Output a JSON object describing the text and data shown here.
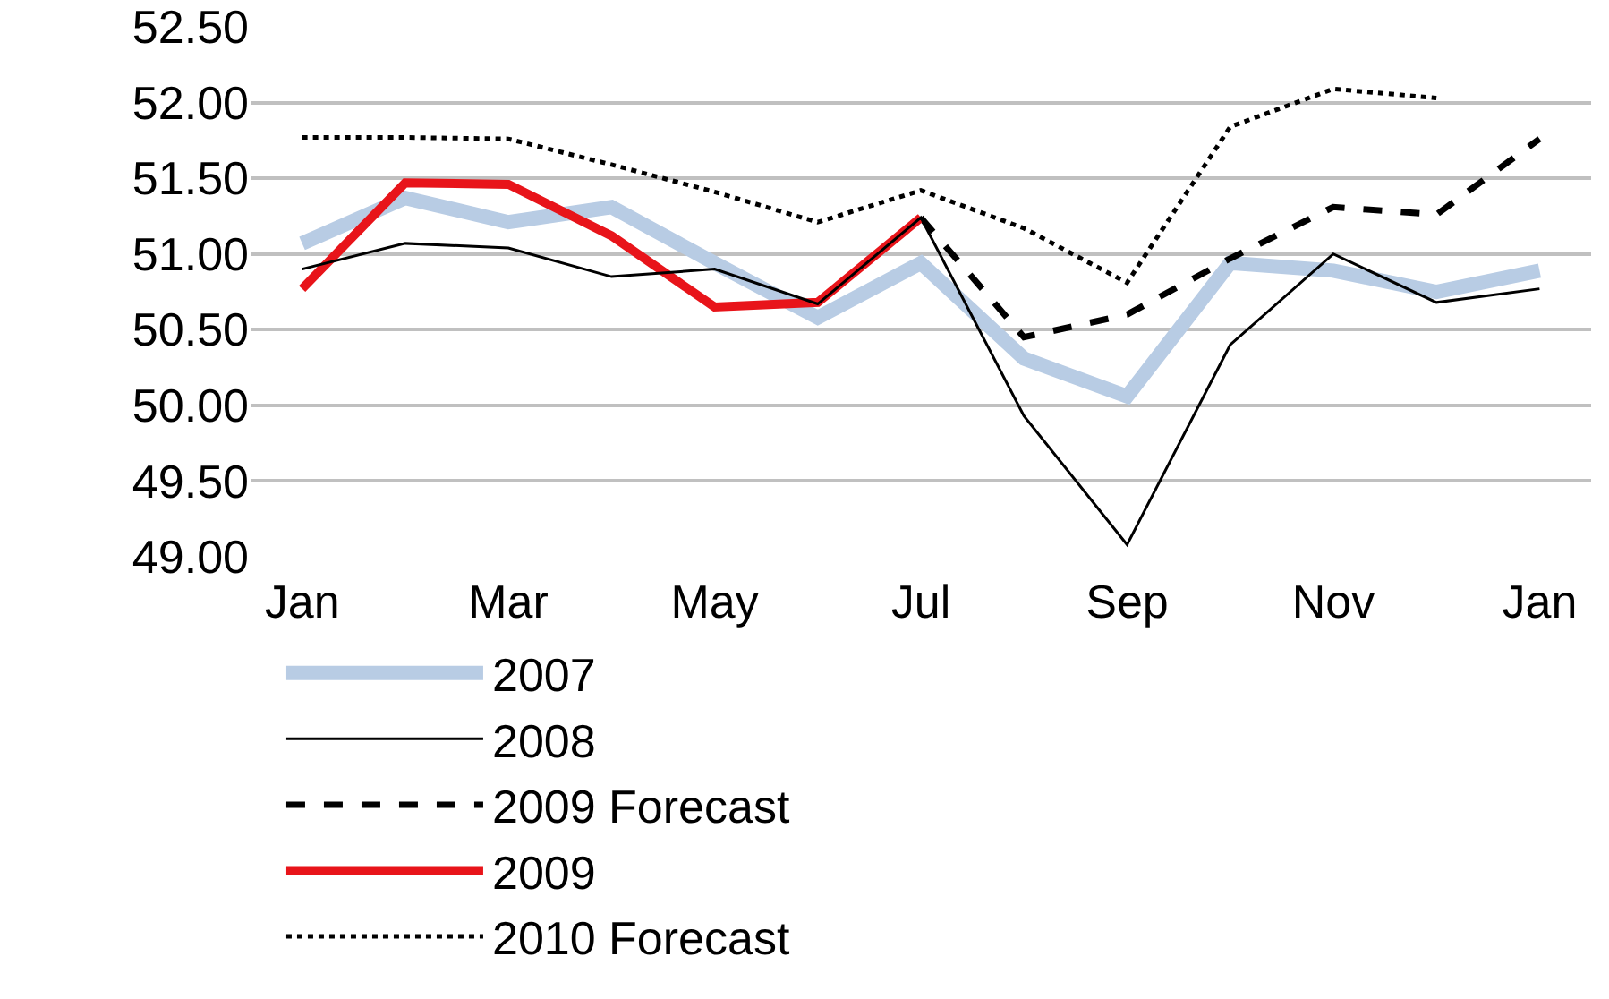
{
  "chart_data": {
    "type": "line",
    "categories": [
      "Jan",
      null,
      "Mar",
      null,
      "May",
      null,
      "Jul",
      null,
      "Sep",
      null,
      "Nov",
      null,
      "Jan"
    ],
    "ylim": [
      49,
      52.5
    ],
    "yticks": [
      {
        "value": 49,
        "label": "49.00"
      },
      {
        "value": 49.5,
        "label": "49.50"
      },
      {
        "value": 50,
        "label": "50.00"
      },
      {
        "value": 50.5,
        "label": "50.50"
      },
      {
        "value": 51,
        "label": "51.00"
      },
      {
        "value": 51.5,
        "label": "51.50"
      },
      {
        "value": 52,
        "label": "52.00"
      },
      {
        "value": 52.5,
        "label": "52.50"
      }
    ],
    "grid": "y",
    "legend": "bottom",
    "marker": "none",
    "series": [
      {
        "name": "2007",
        "color": "#b8cce4",
        "line_style": "solid",
        "values": [
          51.07,
          51.37,
          51.21,
          51.31,
          50.94,
          50.58,
          50.94,
          50.31,
          50.06,
          50.94,
          50.89,
          50.75,
          50.89
        ]
      },
      {
        "name": "2008",
        "color": "#000000",
        "line_style": "solid",
        "values": [
          50.9,
          51.07,
          51.04,
          50.85,
          50.9,
          50.67,
          51.24,
          49.93,
          49.08,
          50.4,
          51.0,
          50.68,
          50.77
        ]
      },
      {
        "name": "2009 Forecast",
        "color": "#000000",
        "line_style": "dashed",
        "values": [
          null,
          null,
          null,
          null,
          null,
          null,
          51.24,
          50.45,
          50.6,
          50.97,
          51.31,
          51.26,
          51.76
        ]
      },
      {
        "name": "2009",
        "color": "#e8141a",
        "line_style": "solid",
        "values": [
          50.77,
          51.47,
          51.46,
          51.12,
          50.65,
          50.68,
          51.24,
          null,
          null,
          null,
          null,
          null,
          null
        ]
      },
      {
        "name": "2010 Forecast",
        "color": "#000000",
        "line_style": "dotted",
        "values": [
          51.77,
          51.77,
          51.76,
          51.59,
          51.41,
          51.21,
          51.42,
          51.17,
          50.81,
          51.84,
          52.09,
          52.03,
          null
        ]
      }
    ]
  }
}
